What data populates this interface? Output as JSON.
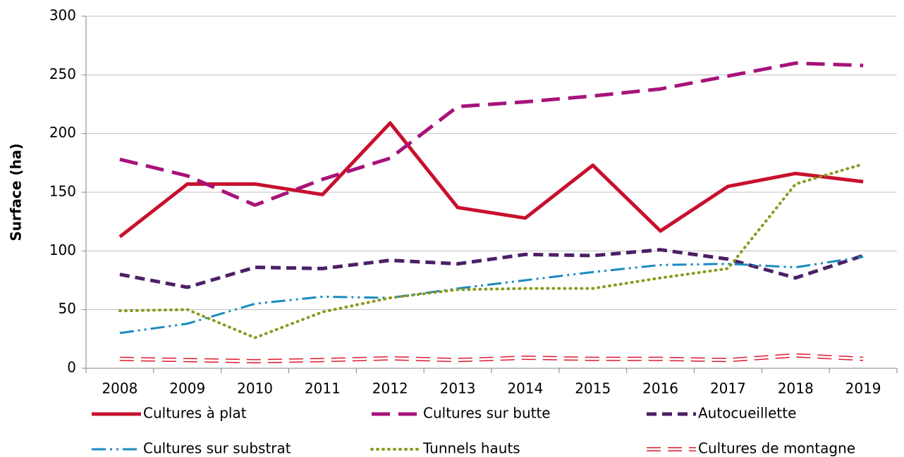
{
  "chart_data": {
    "type": "line",
    "y_label": "Surface (ha)",
    "categories": [
      "2008",
      "2009",
      "2010",
      "2011",
      "2012",
      "2013",
      "2014",
      "2015",
      "2016",
      "2017",
      "2018",
      "2019"
    ],
    "ylim": [
      0,
      300
    ],
    "yticks": [
      0,
      50,
      100,
      150,
      200,
      250,
      300
    ],
    "grid": true,
    "legend": "bottom",
    "series": [
      {
        "name": "Cultures à plat",
        "color": "#c8102e",
        "style": "solid",
        "values": [
          112,
          157,
          157,
          148,
          209,
          137,
          128,
          173,
          117,
          155,
          166,
          159
        ]
      },
      {
        "name": "Cultures sur butte",
        "color": "#a8127a",
        "style": "dashed",
        "values": [
          178,
          164,
          139,
          161,
          179,
          223,
          227,
          232,
          238,
          249,
          260,
          258
        ]
      },
      {
        "name": "Autocueillette",
        "color": "#4b2066",
        "style": "short-dashed",
        "values": [
          80,
          69,
          86,
          85,
          92,
          89,
          97,
          96,
          101,
          93,
          77,
          96
        ]
      },
      {
        "name": "Cultures sur substrat",
        "color": "#1a8ac0",
        "style": "dash-dot-dot",
        "values": [
          30,
          38,
          55,
          61,
          60,
          68,
          75,
          82,
          88,
          89,
          86,
          95
        ]
      },
      {
        "name": "Tunnels hauts",
        "color": "#8a9a1e",
        "style": "dotted",
        "values": [
          49,
          50,
          26,
          48,
          60,
          67,
          68,
          68,
          77,
          85,
          157,
          174
        ]
      },
      {
        "name": "Cultures de montagne",
        "color": "#e0192f",
        "style": "double-dashed",
        "values": [
          8,
          7,
          6,
          7,
          8.5,
          7,
          9,
          8,
          8,
          7,
          11,
          8
        ]
      }
    ]
  }
}
